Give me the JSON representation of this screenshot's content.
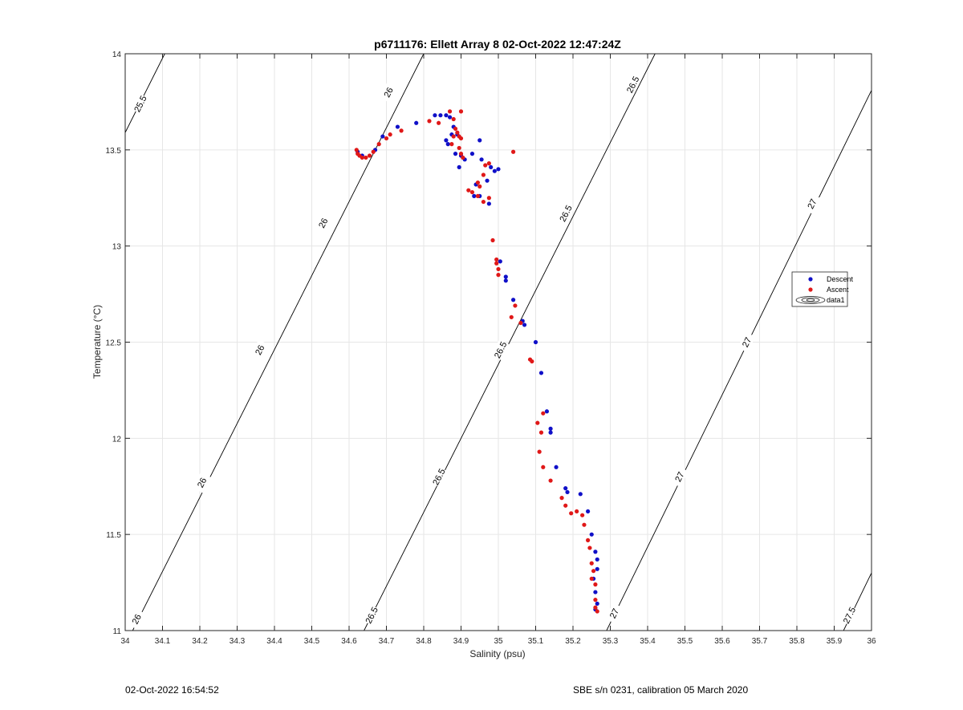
{
  "chart_data": {
    "type": "scatter",
    "title": "p6711176: Ellett Array 8 02-Oct-2022 12:47:24Z",
    "xlabel": "Salinity (psu)",
    "ylabel": "Temperature (°C)",
    "xlim": [
      34,
      36
    ],
    "ylim": [
      11,
      14
    ],
    "x_ticks": [
      "34",
      "34.1",
      "34.2",
      "34.3",
      "34.4",
      "34.5",
      "34.6",
      "34.7",
      "34.8",
      "34.9",
      "35",
      "35.1",
      "35.2",
      "35.3",
      "35.4",
      "35.5",
      "35.6",
      "35.7",
      "35.8",
      "35.9",
      "36"
    ],
    "y_ticks": [
      "11",
      "11.5",
      "12",
      "12.5",
      "13",
      "13.5",
      "14"
    ],
    "grid": true,
    "legend_position": "right",
    "series": [
      {
        "name": "Descent",
        "color": "#1010c8",
        "points": [
          [
            34.623,
            13.49
          ],
          [
            34.635,
            13.47
          ],
          [
            34.67,
            13.5
          ],
          [
            34.69,
            13.57
          ],
          [
            34.73,
            13.62
          ],
          [
            34.78,
            13.64
          ],
          [
            34.83,
            13.68
          ],
          [
            34.845,
            13.68
          ],
          [
            34.86,
            13.68
          ],
          [
            34.87,
            13.67
          ],
          [
            34.88,
            13.62
          ],
          [
            34.86,
            13.55
          ],
          [
            34.865,
            13.53
          ],
          [
            34.875,
            13.58
          ],
          [
            34.89,
            13.58
          ],
          [
            34.885,
            13.48
          ],
          [
            34.895,
            13.41
          ],
          [
            34.9,
            13.47
          ],
          [
            34.91,
            13.45
          ],
          [
            34.93,
            13.48
          ],
          [
            34.95,
            13.55
          ],
          [
            34.955,
            13.45
          ],
          [
            34.97,
            13.34
          ],
          [
            34.98,
            13.41
          ],
          [
            34.99,
            13.39
          ],
          [
            35.0,
            13.4
          ],
          [
            34.94,
            13.32
          ],
          [
            34.935,
            13.26
          ],
          [
            34.95,
            13.26
          ],
          [
            34.975,
            13.22
          ],
          [
            35.005,
            12.92
          ],
          [
            35.02,
            12.84
          ],
          [
            35.02,
            12.82
          ],
          [
            35.04,
            12.72
          ],
          [
            35.065,
            12.61
          ],
          [
            35.07,
            12.59
          ],
          [
            35.1,
            12.5
          ],
          [
            35.115,
            12.34
          ],
          [
            35.13,
            12.14
          ],
          [
            35.14,
            12.05
          ],
          [
            35.14,
            12.03
          ],
          [
            35.155,
            11.85
          ],
          [
            35.18,
            11.74
          ],
          [
            35.185,
            11.72
          ],
          [
            35.22,
            11.71
          ],
          [
            35.24,
            11.62
          ],
          [
            35.25,
            11.5
          ],
          [
            35.26,
            11.41
          ],
          [
            35.265,
            11.37
          ],
          [
            35.265,
            11.32
          ],
          [
            35.255,
            11.27
          ],
          [
            35.26,
            11.2
          ],
          [
            35.265,
            11.14
          ],
          [
            35.26,
            11.11
          ]
        ]
      },
      {
        "name": "Ascent",
        "color": "#e01818",
        "points": [
          [
            34.62,
            13.5
          ],
          [
            34.623,
            13.48
          ],
          [
            34.628,
            13.47
          ],
          [
            34.635,
            13.46
          ],
          [
            34.645,
            13.46
          ],
          [
            34.655,
            13.47
          ],
          [
            34.665,
            13.49
          ],
          [
            34.68,
            13.53
          ],
          [
            34.7,
            13.56
          ],
          [
            34.71,
            13.58
          ],
          [
            34.74,
            13.6
          ],
          [
            34.815,
            13.65
          ],
          [
            34.84,
            13.64
          ],
          [
            34.87,
            13.7
          ],
          [
            34.88,
            13.66
          ],
          [
            34.885,
            13.61
          ],
          [
            34.88,
            13.57
          ],
          [
            34.895,
            13.57
          ],
          [
            34.89,
            13.59
          ],
          [
            34.9,
            13.56
          ],
          [
            34.875,
            13.53
          ],
          [
            34.895,
            13.51
          ],
          [
            34.9,
            13.48
          ],
          [
            34.905,
            13.46
          ],
          [
            34.9,
            13.7
          ],
          [
            34.92,
            13.29
          ],
          [
            34.93,
            13.28
          ],
          [
            34.945,
            13.33
          ],
          [
            34.95,
            13.31
          ],
          [
            34.96,
            13.23
          ],
          [
            34.96,
            13.37
          ],
          [
            34.965,
            13.42
          ],
          [
            34.975,
            13.43
          ],
          [
            34.975,
            13.25
          ],
          [
            34.945,
            13.26
          ],
          [
            34.985,
            13.03
          ],
          [
            34.995,
            12.93
          ],
          [
            34.995,
            12.91
          ],
          [
            35.0,
            12.88
          ],
          [
            35.0,
            12.85
          ],
          [
            35.04,
            13.49
          ],
          [
            35.035,
            12.63
          ],
          [
            35.045,
            12.69
          ],
          [
            35.06,
            12.6
          ],
          [
            35.085,
            12.41
          ],
          [
            35.09,
            12.4
          ],
          [
            35.105,
            12.08
          ],
          [
            35.12,
            12.13
          ],
          [
            35.115,
            12.03
          ],
          [
            35.11,
            11.93
          ],
          [
            35.12,
            11.85
          ],
          [
            35.14,
            11.78
          ],
          [
            35.17,
            11.69
          ],
          [
            35.18,
            11.65
          ],
          [
            35.195,
            11.61
          ],
          [
            35.21,
            11.62
          ],
          [
            35.225,
            11.6
          ],
          [
            35.23,
            11.55
          ],
          [
            35.24,
            11.47
          ],
          [
            35.245,
            11.43
          ],
          [
            35.25,
            11.35
          ],
          [
            35.25,
            11.27
          ],
          [
            35.255,
            11.31
          ],
          [
            35.26,
            11.24
          ],
          [
            35.26,
            11.16
          ],
          [
            35.26,
            11.12
          ],
          [
            35.265,
            11.1
          ]
        ]
      }
    ],
    "contour_series": {
      "name": "data1",
      "color": "#000000",
      "type": "density contours (sigma-theta)",
      "lines": [
        {
          "level": "25.5",
          "line": [
            [
              34.0,
              13.59
            ],
            [
              34.106,
              14.0
            ]
          ],
          "labels": [
            [
              34.04,
              13.74
            ]
          ]
        },
        {
          "level": "26",
          "line": [
            [
              34.02,
              11.0
            ],
            [
              34.8,
              14.0
            ]
          ],
          "labels": [
            [
              34.03,
              11.06
            ],
            [
              34.205,
              11.77
            ],
            [
              34.36,
              12.46
            ],
            [
              34.53,
              13.12
            ],
            [
              34.705,
              13.8
            ]
          ]
        },
        {
          "level": "26.5",
          "line": [
            [
              34.64,
              11.0
            ],
            [
              35.42,
              14.0
            ]
          ],
          "labels": [
            [
              34.66,
              11.08
            ],
            [
              34.84,
              11.8
            ],
            [
              35.005,
              12.46
            ],
            [
              35.18,
              13.17
            ],
            [
              35.36,
              13.84
            ]
          ]
        },
        {
          "level": "27",
          "line": [
            [
              35.29,
              11.0
            ],
            [
              36.0,
              13.81
            ]
          ],
          "labels": [
            [
              35.31,
              11.09
            ],
            [
              35.485,
              11.8
            ],
            [
              35.665,
              12.5
            ],
            [
              35.84,
              13.22
            ]
          ]
        },
        {
          "level": "27.5",
          "line": [
            [
              35.925,
              11.0
            ],
            [
              36.0,
              11.3
            ]
          ],
          "labels": [
            [
              35.94,
              11.08
            ]
          ]
        }
      ]
    }
  },
  "footer": {
    "left": "02-Oct-2022 16:54:52",
    "right": "SBE s/n 0231, calibration 05 March 2020"
  }
}
